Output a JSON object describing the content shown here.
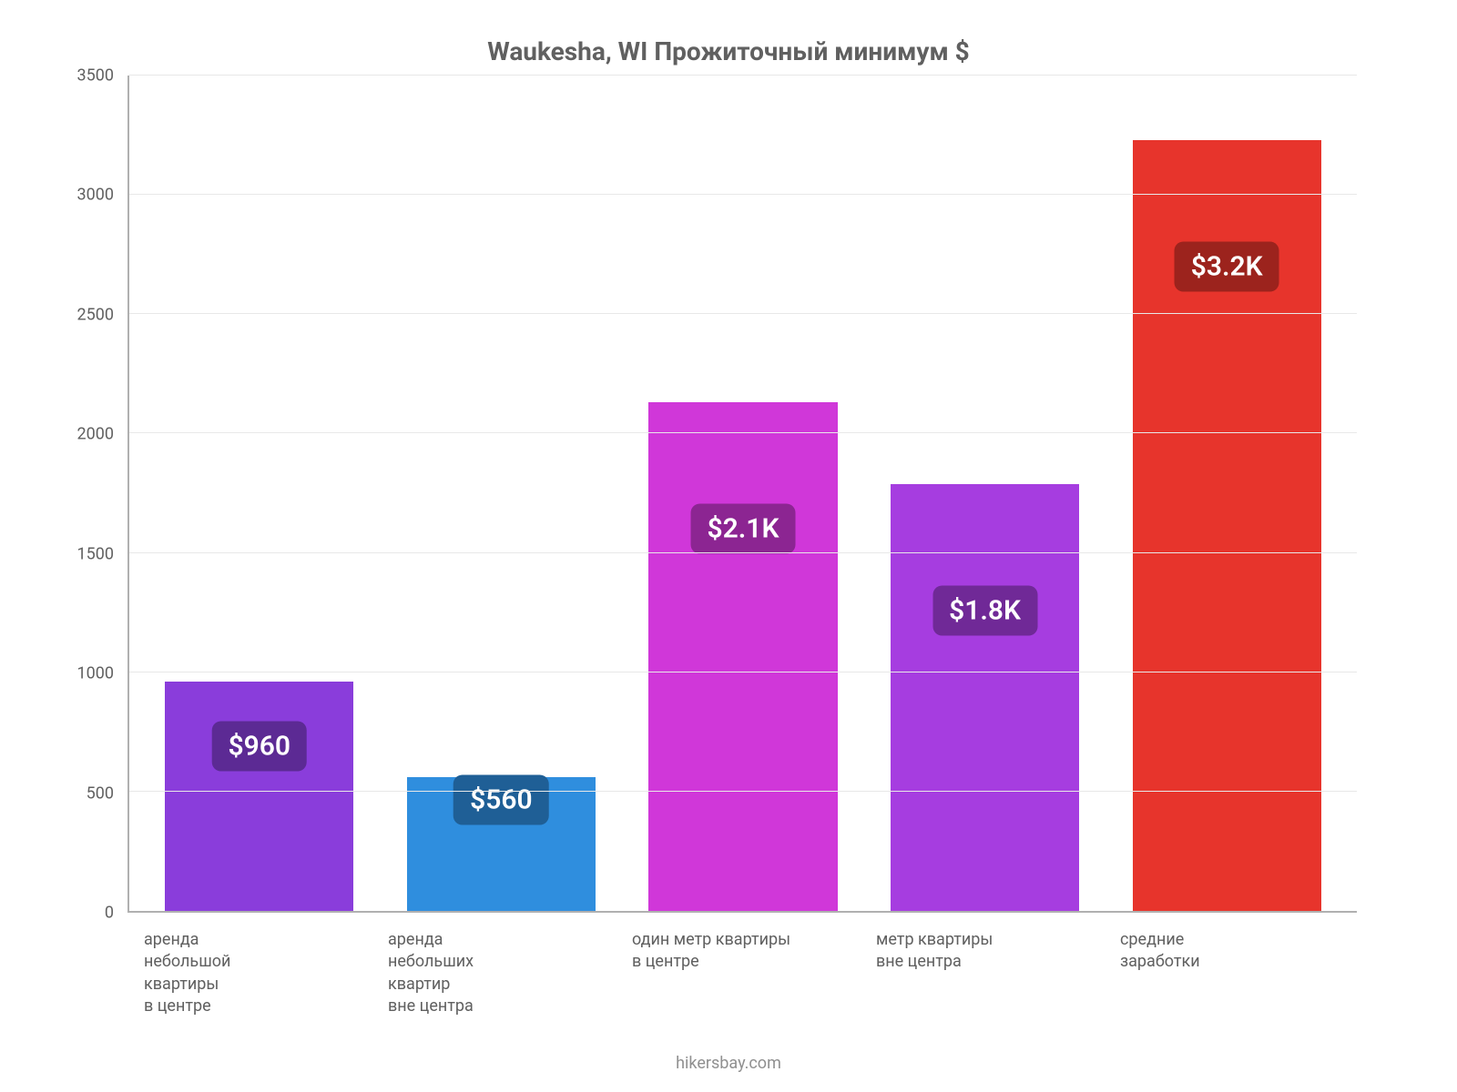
{
  "chart": {
    "type": "bar",
    "title": "Waukesha, WI Прожиточный минимум $",
    "title_fontsize": 28,
    "title_color": "#606060",
    "background_color": "#ffffff",
    "axis_color": "#b0b0b0",
    "grid_color": "#e8e8e8",
    "label_color": "#606060",
    "label_fontsize": 18,
    "badge_fontsize": 30,
    "badge_text_color": "#ffffff",
    "ylim": [
      0,
      3500
    ],
    "ytick_step": 500,
    "yticks": [
      0,
      500,
      1000,
      1500,
      2000,
      2500,
      3000,
      3500
    ],
    "bar_width": 0.78,
    "categories": [
      "аренда\nнебольшой\nквартиры\nв центре",
      "аренда\nнебольших\nквартир\nвне центра",
      "один метр квартиры\nв центре",
      "метр квартиры\nвне центра",
      "средние\nзаработки"
    ],
    "values": [
      960,
      560,
      2130,
      1790,
      3230
    ],
    "bar_colors": [
      "#8a3ddb",
      "#2f8ede",
      "#d037d9",
      "#a63de0",
      "#e7342c"
    ],
    "value_labels": [
      "$960",
      "$560",
      "$2.1K",
      "$1.8K",
      "$3.2K"
    ],
    "badge_colors": [
      "#5c2a94",
      "#1f5f96",
      "#8c2592",
      "#702997",
      "#9c231d"
    ],
    "badge_offsets": [
      270,
      95,
      530,
      530,
      530
    ]
  },
  "footer": {
    "text": "hikersbay.com"
  }
}
